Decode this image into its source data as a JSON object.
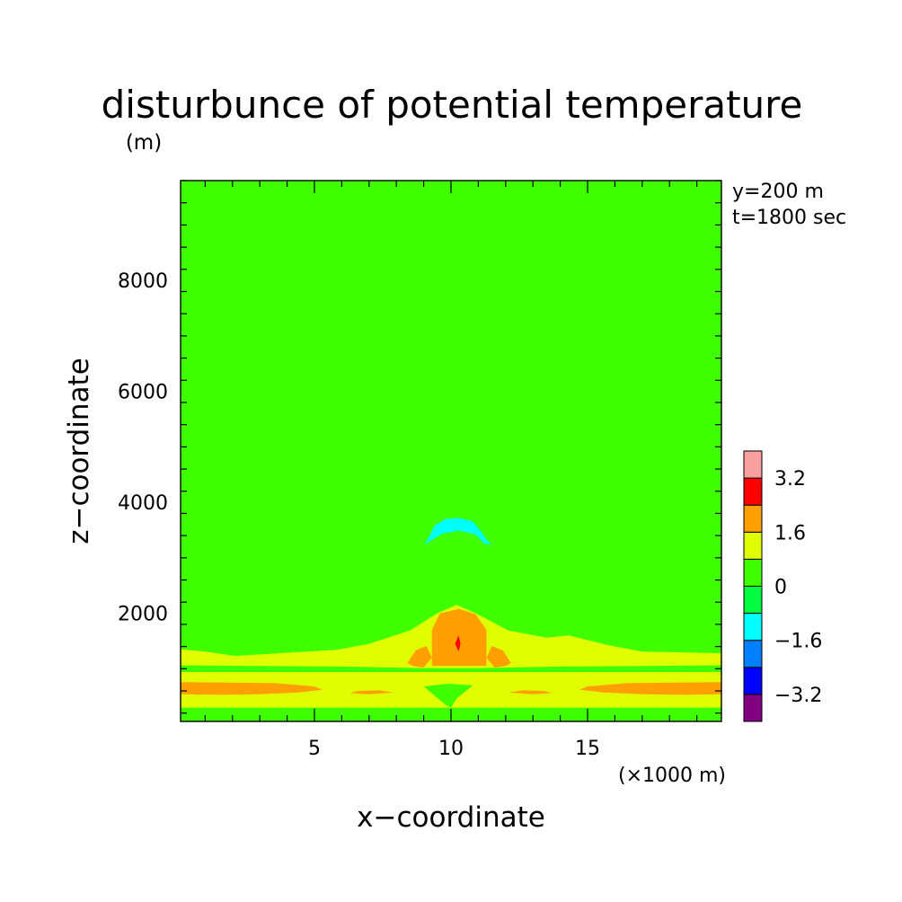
{
  "chart_data": {
    "type": "heatmap",
    "title": "disturbunce of potential temperature",
    "y_unit": "(m)",
    "xlabel": "x−coordinate",
    "ylabel": "z−coordinate",
    "x_unit": "(×1000 m)",
    "annotations": [
      "y=200 m",
      "t=1800 sec"
    ],
    "xlim": [
      0.1,
      19.9
    ],
    "ylim": [
      50,
      9800
    ],
    "x_ticks": [
      5,
      10,
      15
    ],
    "x_tick_labels": [
      "5",
      "10",
      "15"
    ],
    "y_ticks": [
      2000,
      4000,
      6000,
      8000
    ],
    "y_tick_labels": [
      "2000",
      "4000",
      "6000",
      "8000"
    ],
    "colorbar": {
      "levels": [
        -4.0,
        -3.2,
        -2.4,
        -1.6,
        -0.8,
        0.0,
        0.8,
        1.6,
        2.4,
        3.2,
        4.0
      ],
      "colors": [
        "#800080",
        "#0000ff",
        "#0080ff",
        "#00ffff",
        "#00ff40",
        "#40ff00",
        "#e0ff00",
        "#ffa000",
        "#ff0000",
        "#f8a0a0"
      ],
      "tick_values": [
        -3.2,
        -1.6,
        0,
        1.6,
        3.2
      ],
      "tick_labels": [
        "−3.2",
        "−1.6",
        "0",
        "1.6",
        "3.2"
      ]
    },
    "background_value": 0.4,
    "regions": [
      {
        "name": "upper-warm-bowl",
        "value": 0.4,
        "polygon": [
          [
            5.1,
            9600
          ],
          [
            14.9,
            9600
          ],
          [
            14.9,
            7000
          ],
          [
            14.6,
            6450
          ],
          [
            13.5,
            6000
          ],
          [
            12.2,
            5810
          ],
          [
            10,
            5800
          ],
          [
            7.8,
            5810
          ],
          [
            6.5,
            6000
          ],
          [
            5.4,
            6450
          ],
          [
            5.1,
            7000
          ]
        ]
      },
      {
        "name": "left-warm-lobe",
        "value": 0.4,
        "polygon": [
          [
            0.1,
            5780
          ],
          [
            1.3,
            5800
          ],
          [
            4.0,
            5720
          ],
          [
            5.0,
            5250
          ],
          [
            5.8,
            4700
          ],
          [
            6.1,
            4200
          ],
          [
            5.6,
            3750
          ],
          [
            4.3,
            3560
          ],
          [
            2.5,
            3460
          ],
          [
            0.1,
            3430
          ]
        ]
      },
      {
        "name": "right-warm-lobe",
        "value": 0.4,
        "polygon": [
          [
            19.9,
            5780
          ],
          [
            18.7,
            5800
          ],
          [
            16.0,
            5720
          ],
          [
            15.0,
            5250
          ],
          [
            14.2,
            4700
          ],
          [
            13.9,
            4200
          ],
          [
            14.4,
            3750
          ],
          [
            15.7,
            3560
          ],
          [
            17.5,
            3460
          ],
          [
            19.9,
            3430
          ]
        ]
      },
      {
        "name": "cool-cap",
        "value": -1.0,
        "polygon": [
          [
            9.0,
            3230
          ],
          [
            9.2,
            3380
          ],
          [
            9.4,
            3580
          ],
          [
            9.8,
            3700
          ],
          [
            10.3,
            3720
          ],
          [
            10.8,
            3660
          ],
          [
            11.1,
            3480
          ],
          [
            11.3,
            3330
          ],
          [
            11.5,
            3230
          ],
          [
            11.2,
            3260
          ],
          [
            10.9,
            3420
          ],
          [
            10.3,
            3490
          ],
          [
            9.7,
            3440
          ],
          [
            9.3,
            3320
          ]
        ]
      },
      {
        "name": "central-warm-column",
        "value": 0.4,
        "polygon": [
          [
            9.1,
            2300
          ],
          [
            9.2,
            2560
          ],
          [
            9.8,
            2700
          ],
          [
            10.3,
            2720
          ],
          [
            10.9,
            2660
          ],
          [
            11.3,
            2500
          ],
          [
            11.3,
            2300
          ]
        ]
      },
      {
        "name": "low-warm-layer",
        "value": 0.4,
        "polygon": [
          [
            0.1,
            1920
          ],
          [
            3.0,
            1950
          ],
          [
            5.0,
            2050
          ],
          [
            8.0,
            2150
          ],
          [
            9.3,
            2300
          ],
          [
            11.0,
            2300
          ],
          [
            13.5,
            2050
          ],
          [
            16.0,
            1940
          ],
          [
            19.9,
            1920
          ],
          [
            19.9,
            50
          ],
          [
            0.1,
            50
          ]
        ]
      },
      {
        "name": "lower-mid-band",
        "value": 1.2,
        "polygon": [
          [
            0.1,
            1350
          ],
          [
            1.0,
            1310
          ],
          [
            2.1,
            1230
          ],
          [
            4.1,
            1290
          ],
          [
            5.8,
            1340
          ],
          [
            7.0,
            1450
          ],
          [
            8.5,
            1690
          ],
          [
            9.5,
            2000
          ],
          [
            10.2,
            2150
          ],
          [
            10.9,
            2000
          ],
          [
            12.1,
            1690
          ],
          [
            13.5,
            1560
          ],
          [
            14.3,
            1600
          ],
          [
            15.8,
            1420
          ],
          [
            17.0,
            1310
          ],
          [
            19.9,
            1280
          ],
          [
            19.9,
            50
          ],
          [
            0.1,
            50
          ]
        ]
      },
      {
        "name": "shallow-band-1",
        "value": 0.4,
        "polygon": [
          [
            0.1,
            1060
          ],
          [
            6.0,
            1040
          ],
          [
            9.0,
            1010
          ],
          [
            11.0,
            1010
          ],
          [
            14.0,
            1040
          ],
          [
            19.9,
            1060
          ],
          [
            19.9,
            940
          ],
          [
            0.1,
            940
          ]
        ]
      },
      {
        "name": "shallow-band-2",
        "value": 0.4,
        "polygon": [
          [
            0.1,
            300
          ],
          [
            19.9,
            300
          ],
          [
            19.9,
            50
          ],
          [
            0.1,
            50
          ]
        ]
      },
      {
        "name": "surface-left-warm",
        "value": 2.0,
        "polygon": [
          [
            0.1,
            760
          ],
          [
            3.6,
            740
          ],
          [
            5.0,
            680
          ],
          [
            5.3,
            620
          ],
          [
            4.4,
            570
          ],
          [
            3.0,
            540
          ],
          [
            1.5,
            530
          ],
          [
            0.1,
            540
          ]
        ]
      },
      {
        "name": "surface-right-warm",
        "value": 2.0,
        "polygon": [
          [
            19.9,
            760
          ],
          [
            16.4,
            740
          ],
          [
            15.0,
            680
          ],
          [
            14.7,
            620
          ],
          [
            15.6,
            570
          ],
          [
            17.0,
            540
          ],
          [
            18.5,
            530
          ],
          [
            19.9,
            540
          ]
        ]
      },
      {
        "name": "surface-center-left-warm",
        "value": 2.0,
        "polygon": [
          [
            6.3,
            560
          ],
          [
            7.0,
            540
          ],
          [
            7.9,
            570
          ],
          [
            7.4,
            610
          ],
          [
            6.6,
            600
          ]
        ]
      },
      {
        "name": "surface-center-right-warm",
        "value": 2.0,
        "polygon": [
          [
            13.7,
            560
          ],
          [
            13.0,
            540
          ],
          [
            12.1,
            570
          ],
          [
            12.6,
            610
          ],
          [
            13.4,
            600
          ]
        ]
      },
      {
        "name": "central-warm-pool",
        "value": 2.0,
        "polygon": [
          [
            9.3,
            1050
          ],
          [
            9.3,
            1700
          ],
          [
            9.6,
            2000
          ],
          [
            10.3,
            2080
          ],
          [
            10.9,
            1980
          ],
          [
            11.3,
            1700
          ],
          [
            11.3,
            1050
          ]
        ]
      },
      {
        "name": "left-warm-blob",
        "value": 2.0,
        "polygon": [
          [
            8.4,
            1100
          ],
          [
            8.7,
            1330
          ],
          [
            9.1,
            1410
          ],
          [
            9.3,
            1200
          ],
          [
            9.0,
            1020
          ],
          [
            8.6,
            1050
          ]
        ]
      },
      {
        "name": "right-warm-blob",
        "value": 2.0,
        "polygon": [
          [
            12.2,
            1100
          ],
          [
            11.9,
            1330
          ],
          [
            11.5,
            1410
          ],
          [
            11.3,
            1200
          ],
          [
            11.6,
            1020
          ],
          [
            12.0,
            1050
          ]
        ]
      },
      {
        "name": "hot-core",
        "value": 3.0,
        "polygon": [
          [
            10.15,
            1450
          ],
          [
            10.28,
            1600
          ],
          [
            10.35,
            1450
          ],
          [
            10.28,
            1310
          ]
        ]
      },
      {
        "name": "lower-cool-pocket",
        "value": 0.4,
        "polygon": [
          [
            9.0,
            680
          ],
          [
            9.9,
            730
          ],
          [
            10.8,
            700
          ],
          [
            10.2,
            460
          ],
          [
            10.0,
            300
          ],
          [
            9.8,
            350
          ]
        ]
      }
    ]
  }
}
